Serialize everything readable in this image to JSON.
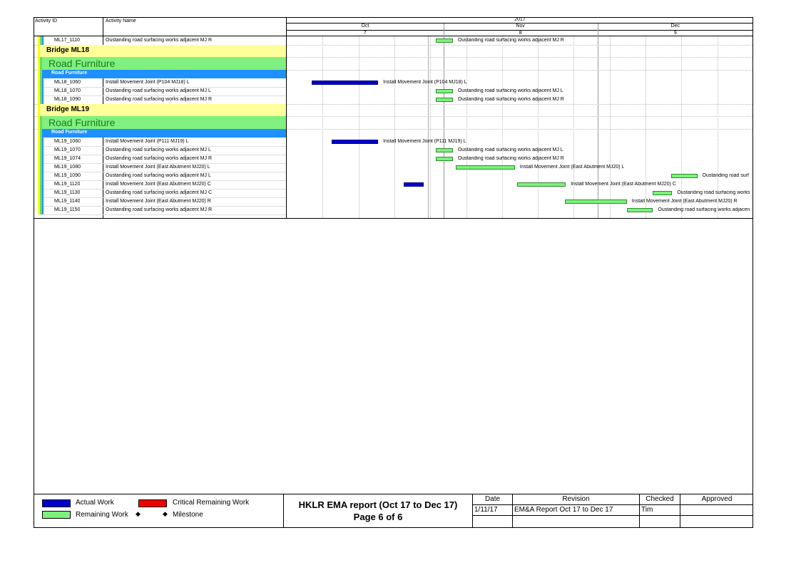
{
  "header": {
    "col_activity_id": "Activity ID",
    "col_activity_name": "Activity Name",
    "year": "2017",
    "months": [
      "Oct",
      "Nov",
      "Dec"
    ],
    "month_numbers": [
      "7",
      "8",
      "9"
    ]
  },
  "rows": [
    {
      "type": "activity",
      "id": "ML17_1110",
      "name": "Oustanding road surfacing works adjacent MJ R",
      "bar": {
        "kind": "remaining",
        "start": 0.319,
        "end": 0.356
      },
      "label": "Oustanding road surfacing works adjacent MJ R"
    },
    {
      "type": "group1",
      "name": "Bridge ML18"
    },
    {
      "type": "group2",
      "name": "Road Furniture"
    },
    {
      "type": "group3",
      "name": "Road Furniture"
    },
    {
      "type": "activity",
      "id": "ML18_1060",
      "name": "Install Movement Joint (P104 MJ18) L",
      "bar": {
        "kind": "actual",
        "start": 0.053,
        "end": 0.196
      },
      "label": "Install Movement Joint (P104 MJ18) L"
    },
    {
      "type": "activity",
      "id": "ML18_1070",
      "name": "Oustanding road surfacing works adjacent MJ L",
      "bar": {
        "kind": "remaining",
        "start": 0.319,
        "end": 0.356
      },
      "label": "Oustanding road surfacing works adjacent MJ L"
    },
    {
      "type": "activity",
      "id": "ML18_1090",
      "name": "Oustanding road surfacing works adjacent MJ R",
      "bar": {
        "kind": "remaining",
        "start": 0.319,
        "end": 0.356
      },
      "label": "Oustanding road surfacing works adjacent MJ R"
    },
    {
      "type": "group1",
      "name": "Bridge ML19"
    },
    {
      "type": "group2",
      "name": "Road Furniture"
    },
    {
      "type": "group3",
      "name": "Road Furniture"
    },
    {
      "type": "activity",
      "id": "ML19_1060",
      "name": "Install Movement Joint (P111 MJ19) L",
      "bar": {
        "kind": "actual",
        "start": 0.097,
        "end": 0.196
      },
      "label": "Install Movement Joint (P111 MJ19) L"
    },
    {
      "type": "activity",
      "id": "ML19_1070",
      "name": "Oustanding road surfacing works adjacent MJ L",
      "bar": {
        "kind": "remaining",
        "start": 0.319,
        "end": 0.356
      },
      "label": "Oustanding road surfacing works adjacent MJ L"
    },
    {
      "type": "activity",
      "id": "ML19_1074",
      "name": "Oustanding road surfacing works adjacent MJ R",
      "bar": {
        "kind": "remaining",
        "start": 0.319,
        "end": 0.356
      },
      "label": "Oustanding road surfacing works adjacent MJ R"
    },
    {
      "type": "activity",
      "id": "ML19_1080",
      "name": "Install Movement Joint (East Abutment MJ20) L",
      "bar": {
        "kind": "remaining",
        "start": 0.362,
        "end": 0.489
      },
      "label": "Install Movement Joint (East Abutment MJ20) L"
    },
    {
      "type": "activity",
      "id": "ML19_1090",
      "name": "Oustanding road surfacing works adjacent MJ L",
      "bar": {
        "kind": "remaining",
        "start": 0.824,
        "end": 0.88
      },
      "label": "Oustanding road surf"
    },
    {
      "type": "activity",
      "id": "ML19_1120",
      "name": "Install Movement Joint (East Abutment MJ20) C",
      "bar": {
        "kind": "remaining",
        "start": 0.494,
        "end": 0.598
      },
      "bar2": {
        "kind": "actual",
        "start": 0.25,
        "end": 0.294
      },
      "label": "Install Movement Joint (East Abutment MJ20) C"
    },
    {
      "type": "activity",
      "id": "ML19_1130",
      "name": "Oustanding road surfacing works adjacent MJ C",
      "bar": {
        "kind": "remaining",
        "start": 0.784,
        "end": 0.826
      },
      "label": "Oustanding road surfacing works"
    },
    {
      "type": "activity",
      "id": "ML19_1140",
      "name": "Install Movement Joint (East Abutment MJ20) R",
      "bar": {
        "kind": "remaining",
        "start": 0.597,
        "end": 0.729
      },
      "label": "Install Movement Joint (East Abutment MJ20) R"
    },
    {
      "type": "activity",
      "id": "ML19_1150",
      "name": "Oustanding road surfacing works adjacent MJ R",
      "bar": {
        "kind": "remaining",
        "start": 0.73,
        "end": 0.785
      },
      "label": "Oustanding road surfacing works adjacen"
    }
  ],
  "legend": {
    "actual": "Actual Work",
    "critical": "Critical Remaining Work",
    "remaining": "Remaining Work",
    "milestone": "Milestone"
  },
  "title_block": {
    "title": "HKLR EMA report (Oct 17 to Dec 17)",
    "page": "Page 6 of 6",
    "col_date": "Date",
    "col_revision": "Revision",
    "col_checked": "Checked",
    "col_approved": "Approved",
    "date": "1/11/17",
    "revision": "EM&A Report Oct 17 to Dec 17",
    "checked": "Tim",
    "approved": ""
  },
  "colors": {
    "actual": "#0000cc",
    "remaining": "#7cf27c",
    "critical": "#ee0000",
    "group1_bg": "#ffff99",
    "group2_bg": "#80f080",
    "group3_bg": "#1e90ff"
  }
}
